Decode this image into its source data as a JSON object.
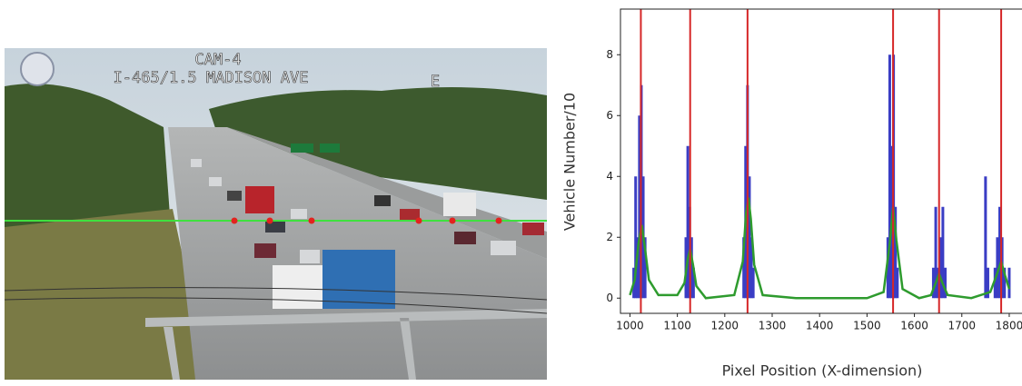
{
  "photo": {
    "camera": "CAM-4",
    "location": "I-465/1.5 MADISON AVE",
    "direction": "E"
  },
  "chart_data": {
    "type": "line",
    "ylabel": "Vehicle Number/10",
    "xlabel": "Pixel Position (X-dimension)",
    "xlim": [
      980,
      1825
    ],
    "ylim": [
      -0.5,
      9.5
    ],
    "xticks": [
      1000,
      1100,
      1200,
      1300,
      1400,
      1500,
      1600,
      1700,
      1800
    ],
    "yticks": [
      0,
      2,
      4,
      6,
      8
    ],
    "bars": {
      "color": "#3a3dc4",
      "x": [
        1008,
        1012,
        1016,
        1020,
        1024,
        1028,
        1032,
        1118,
        1122,
        1126,
        1130,
        1134,
        1240,
        1244,
        1248,
        1252,
        1256,
        1260,
        1544,
        1548,
        1552,
        1556,
        1560,
        1564,
        1640,
        1645,
        1650,
        1656,
        1660,
        1665,
        1750,
        1755,
        1770,
        1775,
        1780,
        1785,
        1790,
        1800
      ],
      "values": [
        1,
        4,
        2,
        6,
        7,
        4,
        2,
        2,
        5,
        3,
        2,
        1,
        2,
        5,
        7,
        4,
        2,
        1,
        2,
        8,
        5,
        8,
        3,
        1,
        1,
        3,
        1,
        2,
        3,
        1,
        4,
        1,
        1,
        2,
        3,
        2,
        1,
        1
      ]
    },
    "series": [
      {
        "color": "#2e9b2e",
        "x": [
          1000,
          1010,
          1018,
          1025,
          1032,
          1040,
          1060,
          1100,
          1115,
          1122,
          1127,
          1133,
          1140,
          1160,
          1220,
          1238,
          1245,
          1250,
          1255,
          1262,
          1280,
          1350,
          1500,
          1535,
          1548,
          1555,
          1562,
          1575,
          1610,
          1635,
          1645,
          1652,
          1659,
          1670,
          1720,
          1760,
          1772,
          1783,
          1792,
          1800
        ],
        "values": [
          0.1,
          0.6,
          1.8,
          2.4,
          1.6,
          0.6,
          0.1,
          0.1,
          0.5,
          1.3,
          1.6,
          1.1,
          0.4,
          0,
          0.1,
          1.2,
          2.8,
          3.3,
          2.6,
          1.1,
          0.1,
          0,
          0,
          0.2,
          1.8,
          3.0,
          1.9,
          0.3,
          0,
          0.1,
          0.5,
          0.8,
          0.5,
          0.1,
          0,
          0.2,
          0.7,
          1.2,
          0.7,
          0.3
        ]
      }
    ],
    "vlines": {
      "color": "#d62728",
      "x": [
        1023,
        1127,
        1248,
        1555,
        1652,
        1783
      ]
    }
  }
}
